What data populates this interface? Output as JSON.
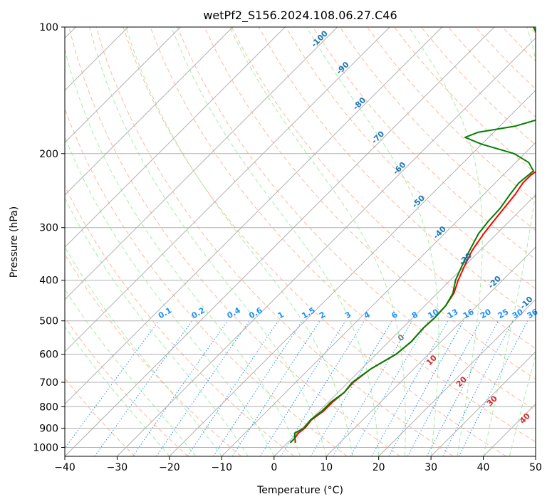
{
  "chart_data": {
    "type": "line",
    "title": "wetPf2_S156.2024.108.06.27.C46",
    "xlabel": "Temperature (°C)",
    "ylabel": "Pressure (hPa)",
    "xlim": [
      -40,
      50
    ],
    "ylim": [
      1050,
      100
    ],
    "y_scale": "log",
    "x_ticks": [
      -40,
      -30,
      -20,
      -10,
      0,
      10,
      20,
      30,
      40,
      50
    ],
    "x_tick_labels": [
      "−40",
      "−30",
      "−20",
      "−10",
      "0",
      "10",
      "20",
      "30",
      "40",
      "50"
    ],
    "y_ticks": [
      100,
      200,
      300,
      400,
      500,
      600,
      700,
      800,
      900,
      1000
    ],
    "y_tick_labels": [
      "100",
      "200",
      "300",
      "400",
      "500",
      "600",
      "700",
      "800",
      "900",
      "1000"
    ],
    "grid": true,
    "background": {
      "skewt_isotherms_step": 10,
      "dry_adiabats": true,
      "moist_adiabats": true,
      "mixing_ratio_lines": true
    },
    "series": [
      {
        "color": "#ff0000",
        "points": [
          {
            "p": 975,
            "t": 1.5
          },
          {
            "p": 950,
            "t": 0.5
          },
          {
            "p": 925,
            "t": 0.2
          },
          {
            "p": 900,
            "t": 0.5
          },
          {
            "p": 860,
            "t": 0.2
          },
          {
            "p": 820,
            "t": 0.8
          },
          {
            "p": 780,
            "t": 0.8
          },
          {
            "p": 740,
            "t": 1.2
          },
          {
            "p": 700,
            "t": 1.0
          },
          {
            "p": 650,
            "t": 1.8
          },
          {
            "p": 600,
            "t": 3.8
          },
          {
            "p": 560,
            "t": 4.3
          },
          {
            "p": 520,
            "t": 4.0
          },
          {
            "p": 490,
            "t": 4.2
          },
          {
            "p": 460,
            "t": 4.0
          },
          {
            "p": 430,
            "t": 3.2
          },
          {
            "p": 400,
            "t": 1.5
          },
          {
            "p": 370,
            "t": 0.0
          },
          {
            "p": 340,
            "t": -1.5
          },
          {
            "p": 310,
            "t": -2.5
          },
          {
            "p": 290,
            "t": -3.0
          },
          {
            "p": 270,
            "t": -3.5
          },
          {
            "p": 250,
            "t": -4.0
          },
          {
            "p": 235,
            "t": -4.7
          },
          {
            "p": 225,
            "t": -4.7
          },
          {
            "p": 215,
            "t": -4.0
          },
          {
            "p": 205,
            "t": -2.0
          },
          {
            "p": 198,
            "t": 0.0
          },
          {
            "p": 190,
            "t": 3.0
          },
          {
            "p": 180,
            "t": 6.5
          },
          {
            "p": 170,
            "t": 9.2
          },
          {
            "p": 160,
            "t": 11.0
          },
          {
            "p": 150,
            "t": 12.5
          },
          {
            "p": 140,
            "t": 14.5
          },
          {
            "p": 130,
            "t": 16.3
          },
          {
            "p": 120,
            "t": 18.5
          },
          {
            "p": 112,
            "t": 21.0
          },
          {
            "p": 105,
            "t": 22.8
          },
          {
            "p": 100,
            "t": 23.5
          }
        ]
      },
      {
        "color": "#008000",
        "points": [
          {
            "p": 975,
            "t": 0.5
          },
          {
            "p": 950,
            "t": 0.5
          },
          {
            "p": 925,
            "t": -0.5
          },
          {
            "p": 900,
            "t": 0.3
          },
          {
            "p": 860,
            "t": 0.0
          },
          {
            "p": 820,
            "t": 0.5
          },
          {
            "p": 780,
            "t": 0.5
          },
          {
            "p": 740,
            "t": 1.2
          },
          {
            "p": 700,
            "t": 0.8
          },
          {
            "p": 650,
            "t": 1.8
          },
          {
            "p": 600,
            "t": 3.8
          },
          {
            "p": 560,
            "t": 4.3
          },
          {
            "p": 520,
            "t": 4.0
          },
          {
            "p": 490,
            "t": 4.2
          },
          {
            "p": 460,
            "t": 4.0
          },
          {
            "p": 430,
            "t": 3.0
          },
          {
            "p": 400,
            "t": 1.0
          },
          {
            "p": 370,
            "t": -0.5
          },
          {
            "p": 340,
            "t": -2.0
          },
          {
            "p": 310,
            "t": -3.5
          },
          {
            "p": 290,
            "t": -4.0
          },
          {
            "p": 270,
            "t": -4.2
          },
          {
            "p": 250,
            "t": -5.0
          },
          {
            "p": 235,
            "t": -5.5
          },
          {
            "p": 220,
            "t": -5.0
          },
          {
            "p": 210,
            "t": -7.5
          },
          {
            "p": 200,
            "t": -12.0
          },
          {
            "p": 190,
            "t": -20.0
          },
          {
            "p": 183,
            "t": -24.5
          },
          {
            "p": 178,
            "t": -23.0
          },
          {
            "p": 172,
            "t": -17.0
          },
          {
            "p": 165,
            "t": -13.5
          },
          {
            "p": 158,
            "t": -13.0
          },
          {
            "p": 150,
            "t": -15.5
          },
          {
            "p": 140,
            "t": -19.0
          },
          {
            "p": 130,
            "t": -21.0
          },
          {
            "p": 120,
            "t": -23.5
          },
          {
            "p": 110,
            "t": -27.5
          },
          {
            "p": 105,
            "t": -30.0
          },
          {
            "p": 100,
            "t": -32.5
          }
        ]
      }
    ],
    "mixing_ratio_labels": [
      "0.1",
      "0.2",
      "0.4",
      "0.6",
      "1",
      "1.5",
      "2",
      "3",
      "4",
      "6",
      "8",
      "10",
      "13",
      "16",
      "20",
      "25",
      "30",
      "36"
    ],
    "moist_adiabat_labels": [
      "-100",
      "-90",
      "-80",
      "-70",
      "-60",
      "-50",
      "-40",
      "-30",
      "-20",
      "-10",
      "0",
      "10",
      "20",
      "30",
      "40"
    ],
    "colors": {
      "temperature": "#ff0000",
      "dewpoint": "#008000",
      "mixing_ratio": "#1e90ff",
      "moist_label": "#1f77b4",
      "dry_adiabat": "#ffa07a",
      "moist_adiabat": "#90ee90",
      "isotherm": "#808080",
      "tan_adiabat": "#d2b48c",
      "warm_label": "#d62728",
      "zero_label": "#808080"
    }
  }
}
